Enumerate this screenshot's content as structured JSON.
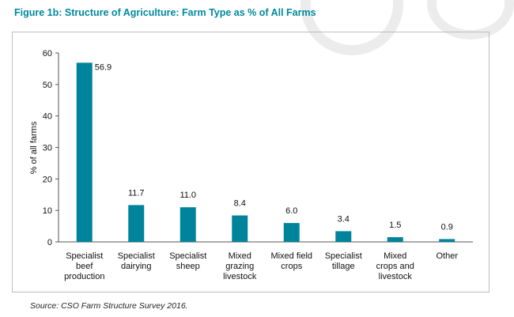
{
  "figure_title": "Figure 1b: Structure of Agriculture: Farm Type as % of All Farms",
  "source_note": "Source: CSO Farm Structure Survey 2016.",
  "colors": {
    "bar": "#00849b",
    "title": "#00889e"
  },
  "chart_data": {
    "type": "bar",
    "title": "",
    "xlabel": "",
    "ylabel": "% of all farms",
    "ylim": [
      0,
      60
    ],
    "yticks": [
      0,
      10,
      20,
      30,
      40,
      50,
      60
    ],
    "grid": false,
    "categories": [
      [
        "Specialist",
        "beef",
        "production"
      ],
      [
        "Specialist",
        "dairying"
      ],
      [
        "Specialist",
        "sheep"
      ],
      [
        "Mixed",
        "grazing",
        "livestock"
      ],
      [
        "Mixed field",
        "crops"
      ],
      [
        "Specialist",
        "tillage"
      ],
      [
        "Mixed",
        "crops and",
        "livestock"
      ],
      [
        "Other"
      ]
    ],
    "values": [
      56.9,
      11.7,
      11.0,
      8.4,
      6.0,
      3.4,
      1.5,
      0.9
    ],
    "value_labels": [
      "56.9",
      "11.7",
      "11.0",
      "8.4",
      "6.0",
      "3.4",
      "1.5",
      "0.9"
    ]
  }
}
